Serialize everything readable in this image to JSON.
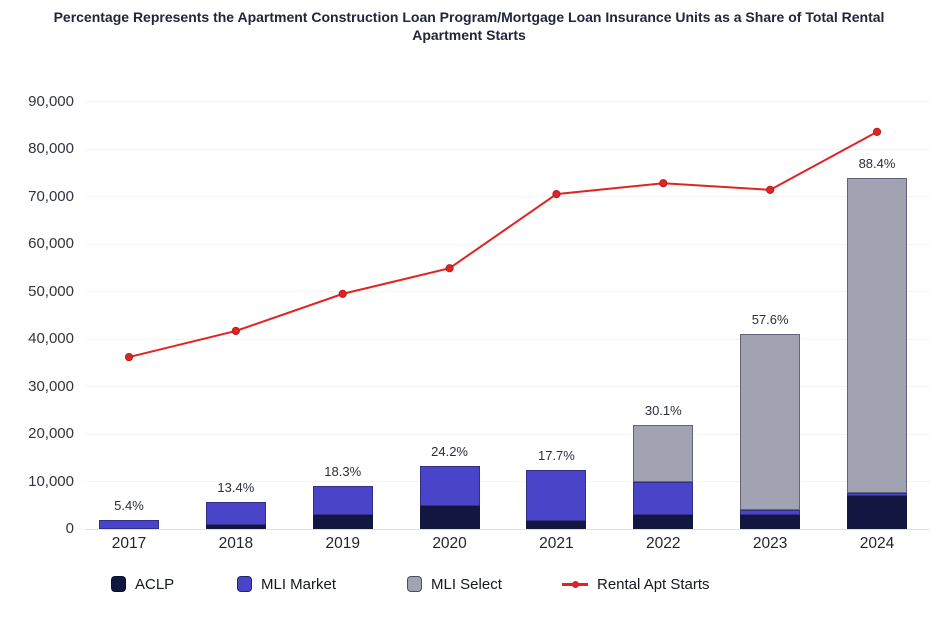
{
  "title": "Percentage Represents the Apartment Construction Loan Program/Mortgage Loan Insurance Units as a Share of Total Rental Apartment Starts",
  "chart_data": {
    "type": "bar",
    "subtype": "stacked-bars-with-line-overlay",
    "title": "Percentage Represents the Apartment Construction Loan Program/Mortgage Loan Insurance Units as a Share of Total Rental Apartment Starts",
    "categories": [
      "2017",
      "2018",
      "2019",
      "2020",
      "2021",
      "2022",
      "2023",
      "2024"
    ],
    "series": [
      {
        "name": "ACLP",
        "color": "#111741",
        "values": [
          0,
          800,
          3000,
          4800,
          1600,
          2900,
          2900,
          6900
        ]
      },
      {
        "name": "MLI Market",
        "color": "#4a44c9",
        "values": [
          1950,
          4800,
          6050,
          8500,
          10900,
          7100,
          1000,
          700
        ]
      },
      {
        "name": "MLI Select",
        "color": "#a1a3b3",
        "values": [
          0,
          0,
          0,
          0,
          0,
          12000,
          37200,
          66300
        ]
      }
    ],
    "line_series": {
      "name": "Rental Apt Starts",
      "color": "#e02424",
      "values": [
        36200,
        41700,
        49500,
        54900,
        70500,
        72800,
        71400,
        83600
      ]
    },
    "bar_total_labels": [
      "5.4%",
      "13.4%",
      "18.3%",
      "24.2%",
      "17.7%",
      "30.1%",
      "57.6%",
      "88.4%"
    ],
    "ylim": [
      0,
      90000
    ],
    "ytick_step": 10000,
    "ytick_labels": [
      "0",
      "10,000",
      "20,000",
      "30,000",
      "40,000",
      "50,000",
      "60,000",
      "70,000",
      "80,000",
      "90,000"
    ],
    "xlabel": "",
    "ylabel": "",
    "grid": true,
    "legend_position": "bottom",
    "legend": [
      {
        "label": "ACLP",
        "type": "box",
        "color": "#111741"
      },
      {
        "label": "MLI Market",
        "type": "box",
        "color": "#4a44c9"
      },
      {
        "label": "MLI Select",
        "type": "box",
        "color": "#a1a3b3"
      },
      {
        "label": "Rental Apt Starts",
        "type": "line",
        "color": "#e02424"
      }
    ]
  }
}
